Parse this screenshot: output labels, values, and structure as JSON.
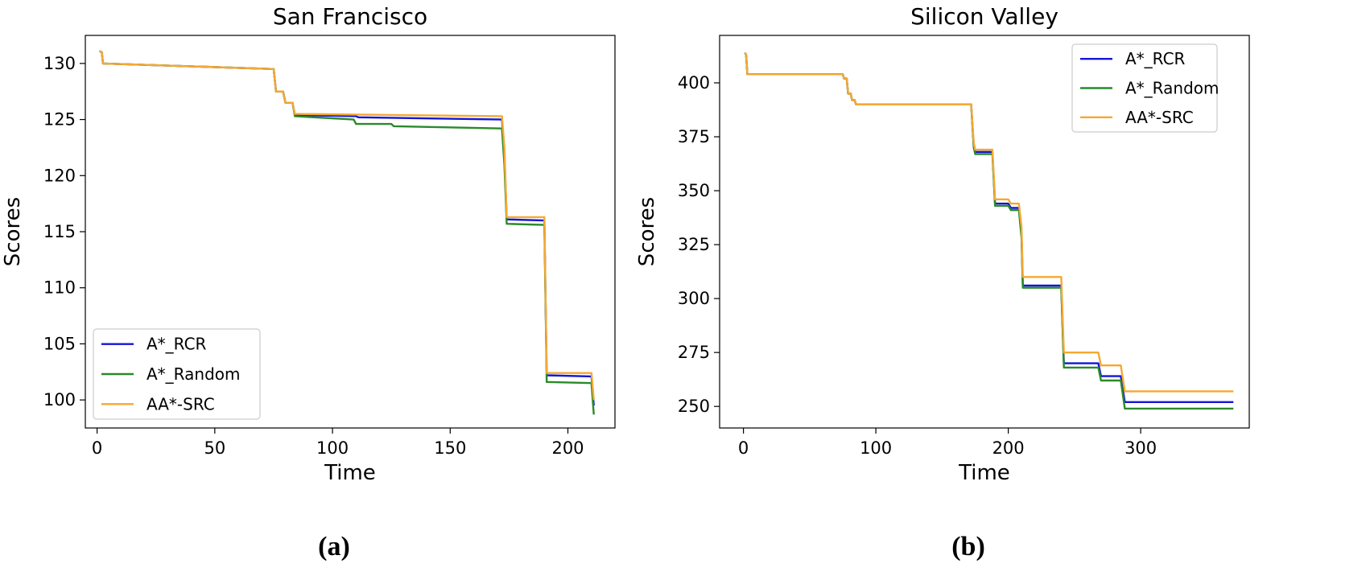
{
  "chart_data": [
    {
      "type": "line",
      "panel_label": "(a)",
      "title": "San Francisco",
      "xlabel": "Time",
      "ylabel": "Scores",
      "xlim": [
        -5,
        220
      ],
      "ylim": [
        97.5,
        132.5
      ],
      "xticks": [
        0,
        50,
        100,
        150,
        200
      ],
      "yticks": [
        100,
        105,
        110,
        115,
        120,
        125,
        130
      ],
      "grid": false,
      "legend_position": "lower-left",
      "series": [
        {
          "name": "A*_RCR",
          "color": "#1515d6",
          "points": [
            [
              1,
              131.1
            ],
            [
              2,
              131
            ],
            [
              2.5,
              130
            ],
            [
              75,
              129.5
            ],
            [
              76,
              127.5
            ],
            [
              79,
              127.5
            ],
            [
              80,
              126.5
            ],
            [
              83,
              126.5
            ],
            [
              84,
              125.4
            ],
            [
              110,
              125.3
            ],
            [
              111,
              125.2
            ],
            [
              172,
              125
            ],
            [
              173,
              122
            ],
            [
              174,
              116.1
            ],
            [
              190,
              116
            ],
            [
              191,
              102.2
            ],
            [
              210,
              102.1
            ],
            [
              211,
              99.5
            ]
          ]
        },
        {
          "name": "A*_Random",
          "color": "#2a8a2a",
          "points": [
            [
              1,
              131.1
            ],
            [
              2,
              131
            ],
            [
              2.5,
              130
            ],
            [
              75,
              129.5
            ],
            [
              76,
              127.5
            ],
            [
              79,
              127.5
            ],
            [
              80,
              126.5
            ],
            [
              83,
              126.5
            ],
            [
              84,
              125.3
            ],
            [
              109,
              125
            ],
            [
              110,
              124.6
            ],
            [
              125,
              124.6
            ],
            [
              126,
              124.4
            ],
            [
              172,
              124.2
            ],
            [
              173,
              121
            ],
            [
              174,
              115.7
            ],
            [
              190,
              115.6
            ],
            [
              191,
              101.6
            ],
            [
              210,
              101.5
            ],
            [
              211,
              98.7
            ]
          ]
        },
        {
          "name": "AA*-SRC",
          "color": "#f5a833",
          "points": [
            [
              1,
              131.1
            ],
            [
              2,
              131
            ],
            [
              2.5,
              130
            ],
            [
              75,
              129.5
            ],
            [
              76,
              127.5
            ],
            [
              79,
              127.5
            ],
            [
              80,
              126.5
            ],
            [
              83,
              126.5
            ],
            [
              84,
              125.5
            ],
            [
              172,
              125.3
            ],
            [
              173,
              122.5
            ],
            [
              174,
              116.3
            ],
            [
              190,
              116.3
            ],
            [
              191,
              102.4
            ],
            [
              210,
              102.4
            ],
            [
              211,
              100
            ]
          ]
        }
      ]
    },
    {
      "type": "line",
      "panel_label": "(b)",
      "title": "Silicon Valley",
      "xlabel": "Time",
      "ylabel": "Scores",
      "xlim": [
        -18,
        382
      ],
      "ylim": [
        240,
        422
      ],
      "xticks": [
        0,
        100,
        200,
        300
      ],
      "yticks": [
        250,
        275,
        300,
        325,
        350,
        375,
        400
      ],
      "grid": false,
      "legend_position": "upper-right",
      "series": [
        {
          "name": "A*_RCR",
          "color": "#1515d6",
          "points": [
            [
              1,
              414
            ],
            [
              2,
              413
            ],
            [
              3,
              404
            ],
            [
              75,
              404
            ],
            [
              76,
              402
            ],
            [
              78,
              402
            ],
            [
              79,
              395
            ],
            [
              81,
              395
            ],
            [
              82,
              392
            ],
            [
              84,
              392
            ],
            [
              85,
              390
            ],
            [
              172,
              390
            ],
            [
              174,
              370
            ],
            [
              175,
              368
            ],
            [
              188,
              368
            ],
            [
              190,
              344
            ],
            [
              200,
              344
            ],
            [
              202,
              342
            ],
            [
              208,
              342
            ],
            [
              210,
              330
            ],
            [
              211,
              306
            ],
            [
              228,
              306
            ],
            [
              229,
              306
            ],
            [
              240,
              306
            ],
            [
              242,
              270
            ],
            [
              268,
              270
            ],
            [
              270,
              264
            ],
            [
              285,
              264
            ],
            [
              288,
              252
            ],
            [
              370,
              252
            ]
          ]
        },
        {
          "name": "A*_Random",
          "color": "#2a8a2a",
          "points": [
            [
              1,
              414
            ],
            [
              2,
              413
            ],
            [
              3,
              404
            ],
            [
              75,
              404
            ],
            [
              76,
              402
            ],
            [
              78,
              402
            ],
            [
              79,
              395
            ],
            [
              81,
              395
            ],
            [
              82,
              392
            ],
            [
              84,
              392
            ],
            [
              85,
              390
            ],
            [
              172,
              390
            ],
            [
              174,
              370
            ],
            [
              175,
              367
            ],
            [
              188,
              367
            ],
            [
              190,
              343
            ],
            [
              200,
              343
            ],
            [
              202,
              341
            ],
            [
              208,
              341
            ],
            [
              210,
              328
            ],
            [
              211,
              305
            ],
            [
              240,
              305
            ],
            [
              242,
              268
            ],
            [
              268,
              268
            ],
            [
              270,
              262
            ],
            [
              285,
              262
            ],
            [
              288,
              249
            ],
            [
              370,
              249
            ]
          ]
        },
        {
          "name": "AA*-SRC",
          "color": "#f5a833",
          "points": [
            [
              1,
              414
            ],
            [
              2,
              413
            ],
            [
              3,
              404
            ],
            [
              75,
              404
            ],
            [
              76,
              402
            ],
            [
              78,
              402
            ],
            [
              79,
              395
            ],
            [
              81,
              395
            ],
            [
              82,
              392
            ],
            [
              84,
              392
            ],
            [
              85,
              390
            ],
            [
              172,
              390
            ],
            [
              174,
              372
            ],
            [
              175,
              369
            ],
            [
              188,
              369
            ],
            [
              190,
              346
            ],
            [
              200,
              346
            ],
            [
              202,
              344
            ],
            [
              208,
              344
            ],
            [
              210,
              333
            ],
            [
              211,
              310
            ],
            [
              240,
              310
            ],
            [
              242,
              275
            ],
            [
              268,
              275
            ],
            [
              270,
              269
            ],
            [
              285,
              269
            ],
            [
              288,
              257
            ],
            [
              370,
              257
            ]
          ]
        }
      ]
    }
  ]
}
